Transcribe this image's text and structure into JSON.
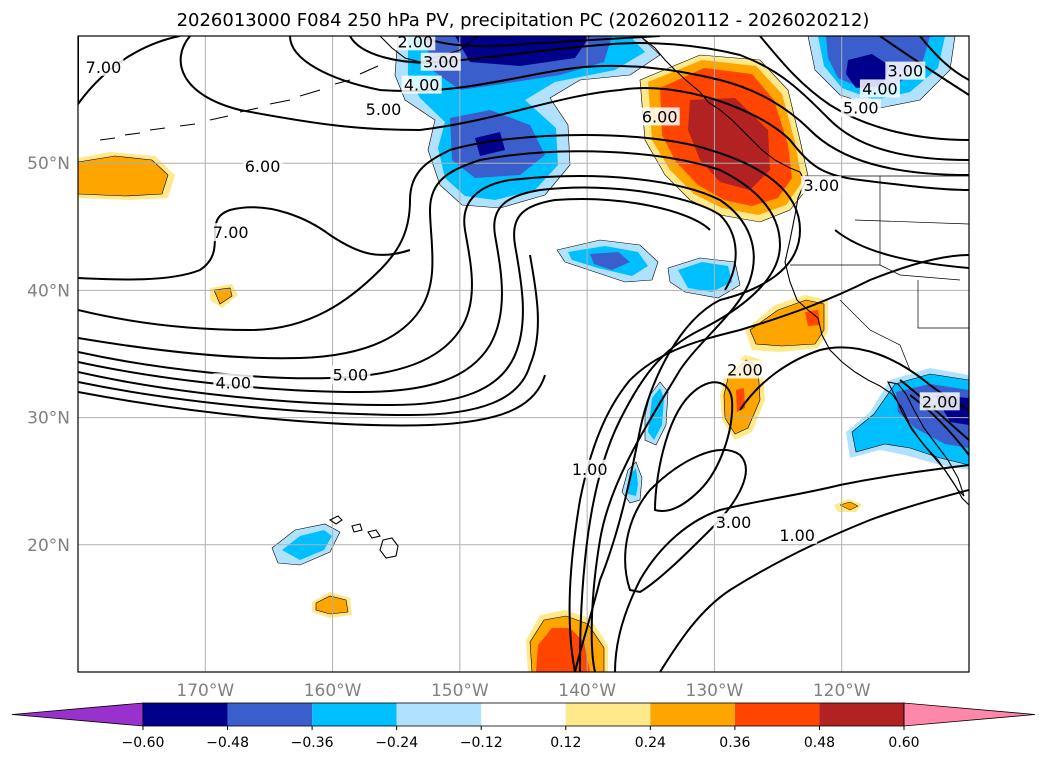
{
  "chart_data": {
    "type": "heatmap",
    "title": "2026013000 F084 250 hPa PV, precipitation PC (2026020112 - 2026020212)",
    "projection": "map",
    "longitude_range": [
      -180,
      -110
    ],
    "latitude_range": [
      10,
      60
    ],
    "x_ticks": [
      {
        "lon": -170,
        "label": "170°W"
      },
      {
        "lon": -160,
        "label": "160°W"
      },
      {
        "lon": -150,
        "label": "150°W"
      },
      {
        "lon": -140,
        "label": "140°W"
      },
      {
        "lon": -130,
        "label": "130°W"
      },
      {
        "lon": -120,
        "label": "120°W"
      }
    ],
    "y_ticks": [
      {
        "lat": 50,
        "label": "50°N"
      },
      {
        "lat": 40,
        "label": "40°N"
      },
      {
        "lat": 30,
        "label": "30°N"
      },
      {
        "lat": 20,
        "label": "20°N"
      }
    ],
    "grid": true,
    "colorbar": {
      "placement": "bottom",
      "extend": "both",
      "levels": [
        -0.6,
        -0.48,
        -0.36,
        -0.24,
        -0.12,
        0.12,
        0.24,
        0.36,
        0.48,
        0.6
      ],
      "tick_labels": [
        "−0.60",
        "−0.48",
        "−0.36",
        "−0.24",
        "−0.12",
        "0.12",
        "0.24",
        "0.36",
        "0.48",
        "0.60"
      ],
      "colors": [
        "#9932cc",
        "#00008b",
        "#3a5fcd",
        "#00bfff",
        "#b0e2ff",
        "#ffffff",
        "#ffe98a",
        "#ffa500",
        "#ff4500",
        "#b22222",
        "#ff88aa"
      ]
    },
    "pv_contours": {
      "levels": [
        1,
        2,
        3,
        4,
        5,
        6,
        7
      ],
      "labels": [
        {
          "text": "7.00",
          "lon": -178,
          "lat": 57.5
        },
        {
          "text": "2.00",
          "lon": -153.5,
          "lat": 59.5
        },
        {
          "text": "3.00",
          "lon": -151.5,
          "lat": 57.9
        },
        {
          "text": "4.00",
          "lon": -153,
          "lat": 56.1
        },
        {
          "text": "5.00",
          "lon": -156,
          "lat": 54.2
        },
        {
          "text": "6.00",
          "lon": -165.5,
          "lat": 49.7
        },
        {
          "text": "7.00",
          "lon": -168,
          "lat": 44.5
        },
        {
          "text": "6.00",
          "lon": -134.3,
          "lat": 53.6
        },
        {
          "text": "3.00",
          "lon": -121.6,
          "lat": 48.2
        },
        {
          "text": "3.00",
          "lon": -115,
          "lat": 57.2
        },
        {
          "text": "4.00",
          "lon": -117,
          "lat": 55.8
        },
        {
          "text": "5.00",
          "lon": -118.5,
          "lat": 54.3
        },
        {
          "text": "4.00",
          "lon": -167.8,
          "lat": 32.7
        },
        {
          "text": "5.00",
          "lon": -158.6,
          "lat": 33.3
        },
        {
          "text": "2.00",
          "lon": -127.6,
          "lat": 33.7
        },
        {
          "text": "2.00",
          "lon": -112.3,
          "lat": 31.2
        },
        {
          "text": "1.00",
          "lon": -139.8,
          "lat": 25.9
        },
        {
          "text": "3.00",
          "lon": -128.5,
          "lat": 21.7
        },
        {
          "text": "1.00",
          "lon": -123.5,
          "lat": 20.7
        }
      ]
    },
    "precip_anomaly_regions": [
      {
        "level": 0.24,
        "center": [
          -177.5,
          49
        ],
        "note": "orange patch"
      },
      {
        "level": 0.24,
        "center": [
          -169,
          40
        ],
        "note": "small orange"
      },
      {
        "level": -0.36,
        "center": [
          -147,
          51
        ],
        "note": "blue cluster"
      },
      {
        "level": -0.6,
        "center": [
          -146,
          59
        ],
        "note": "dark blue top"
      },
      {
        "level": 0.48,
        "center": [
          -130,
          52
        ],
        "note": "pacific northwest max"
      },
      {
        "level": -0.36,
        "center": [
          -120.5,
          57.5
        ],
        "note": "blue NE corner"
      },
      {
        "level": -0.24,
        "center": [
          -138,
          42.5
        ],
        "note": "light blue"
      },
      {
        "level": -0.24,
        "center": [
          -132,
          41
        ],
        "note": "small blue"
      },
      {
        "level": 0.36,
        "center": [
          -126,
          37.5
        ],
        "note": "orange off California"
      },
      {
        "level": 0.36,
        "center": [
          -128,
          31.5
        ],
        "note": "orange"
      },
      {
        "level": -0.36,
        "center": [
          -113.5,
          30
        ],
        "note": "blue Baja"
      },
      {
        "level": -0.24,
        "center": [
          -134.5,
          30
        ],
        "note": "small blue"
      },
      {
        "level": -0.24,
        "center": [
          -135,
          25
        ],
        "note": "small blue"
      },
      {
        "level": -0.24,
        "center": [
          -162.5,
          20.5
        ],
        "note": "blue near Hawaii"
      },
      {
        "level": 0.24,
        "center": [
          -160,
          15.5
        ],
        "note": "orange south of Hawaii"
      },
      {
        "level": 0.36,
        "center": [
          -141.5,
          12
        ],
        "note": "orange bottom"
      },
      {
        "level": 0.24,
        "center": [
          -119,
          23
        ],
        "note": "tiny orange"
      }
    ]
  }
}
